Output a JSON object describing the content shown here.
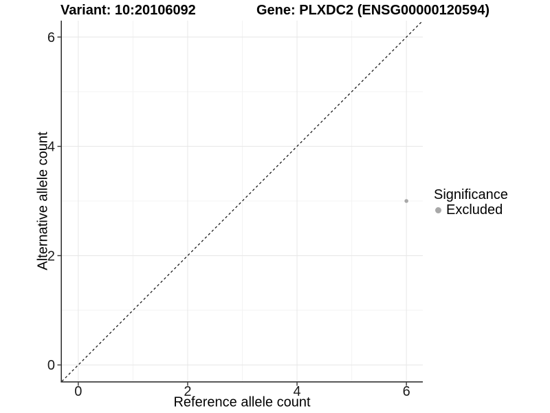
{
  "chart_data": {
    "type": "scatter",
    "title_left": "Variant: 10:20106092",
    "title_right": "Gene: PLXDC2 (ENSG00000120594)",
    "xlabel": "Reference allele count",
    "ylabel": "Alternative allele count",
    "xlim": [
      -0.3,
      6.3
    ],
    "ylim": [
      -0.3,
      6.3
    ],
    "xticks": [
      0,
      2,
      4,
      6
    ],
    "yticks": [
      0,
      2,
      4,
      6
    ],
    "minor_xticks": [
      1,
      3,
      5
    ],
    "minor_yticks": [
      1,
      3,
      5
    ],
    "grid": true,
    "background": "#ffffff",
    "reference_line": {
      "type": "identity",
      "slope": 1,
      "intercept": 0,
      "style": "dashed",
      "color": "#1a1a1a"
    },
    "series": [
      {
        "name": "Excluded",
        "color": "#a8a8a8",
        "points": [
          {
            "x": 6,
            "y": 3
          }
        ]
      }
    ],
    "legend": {
      "title": "Significance",
      "position": "right",
      "items": [
        {
          "label": "Excluded",
          "color": "#a8a8a8",
          "marker": "circle"
        }
      ]
    },
    "colors": {
      "axis_line": "#333333",
      "tick_mark": "#333333",
      "tick_label": "#1a1a1a",
      "major_grid": "#e8e8e8",
      "minor_grid": "#f3f3f3"
    }
  }
}
